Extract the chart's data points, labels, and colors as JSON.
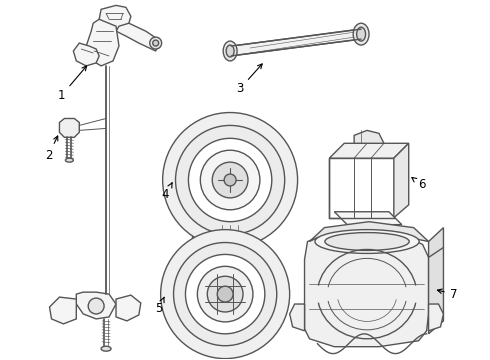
{
  "background_color": "#ffffff",
  "line_color": "#555555",
  "line_width": 1.0,
  "label_color": "#000000",
  "label_fontsize": 8.5,
  "fig_width": 4.9,
  "fig_height": 3.6,
  "dpi": 100
}
